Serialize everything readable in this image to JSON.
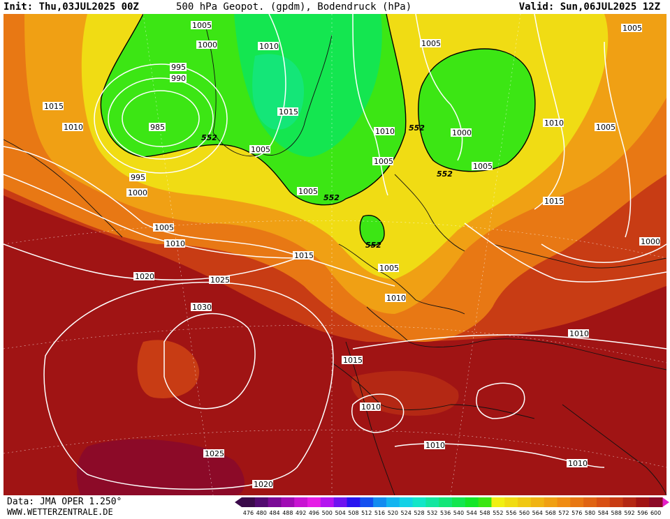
{
  "header": {
    "init": "Init: Thu,03JUL2025 00Z",
    "title": "500 hPa Geopot. (gpdm), Bodendruck (hPa)",
    "valid": "Valid: Sun,06JUL2025 12Z"
  },
  "footer": {
    "data_source": "Data: JMA OPER 1.250°",
    "website": "WWW.WETTERZENTRALE.DE"
  },
  "colorbar": {
    "labels": [
      "476",
      "480",
      "484",
      "488",
      "492",
      "496",
      "500",
      "504",
      "508",
      "512",
      "516",
      "520",
      "524",
      "528",
      "532",
      "536",
      "540",
      "544",
      "548",
      "552",
      "556",
      "560",
      "564",
      "568",
      "572",
      "576",
      "580",
      "584",
      "588",
      "592",
      "596",
      "600"
    ],
    "colors": [
      "#3a0a4a",
      "#520a70",
      "#7a0a96",
      "#a00cb4",
      "#c814d2",
      "#e61ee6",
      "#b414f0",
      "#6e14f0",
      "#2814f0",
      "#1450f0",
      "#148cf0",
      "#14b4f0",
      "#14d2e6",
      "#14e6c8",
      "#14e6a0",
      "#14e678",
      "#14e650",
      "#14e628",
      "#3ce614",
      "#f0f014",
      "#f0dc14",
      "#f0c814",
      "#f0b414",
      "#f0a014",
      "#f08c14",
      "#e87814",
      "#e06414",
      "#d85014",
      "#c83c14",
      "#b42814",
      "#a01414",
      "#8c0a28"
    ]
  },
  "map": {
    "geopotential_labels": [
      "552",
      "552",
      "552",
      "552",
      "552",
      "552"
    ],
    "pressure_labels": [
      "1005",
      "1000",
      "995",
      "990",
      "985",
      "995",
      "1000",
      "1015",
      "1010",
      "1005",
      "1010",
      "1010",
      "1005",
      "1015",
      "1005",
      "1000",
      "1005",
      "1005",
      "1010",
      "1005",
      "1005",
      "1015",
      "1015",
      "1000",
      "1010",
      "1020",
      "1025",
      "1030",
      "1005",
      "1010",
      "1015",
      "1010",
      "1010",
      "1010",
      "1025",
      "1020",
      "1010",
      "1010",
      "1015"
    ]
  }
}
